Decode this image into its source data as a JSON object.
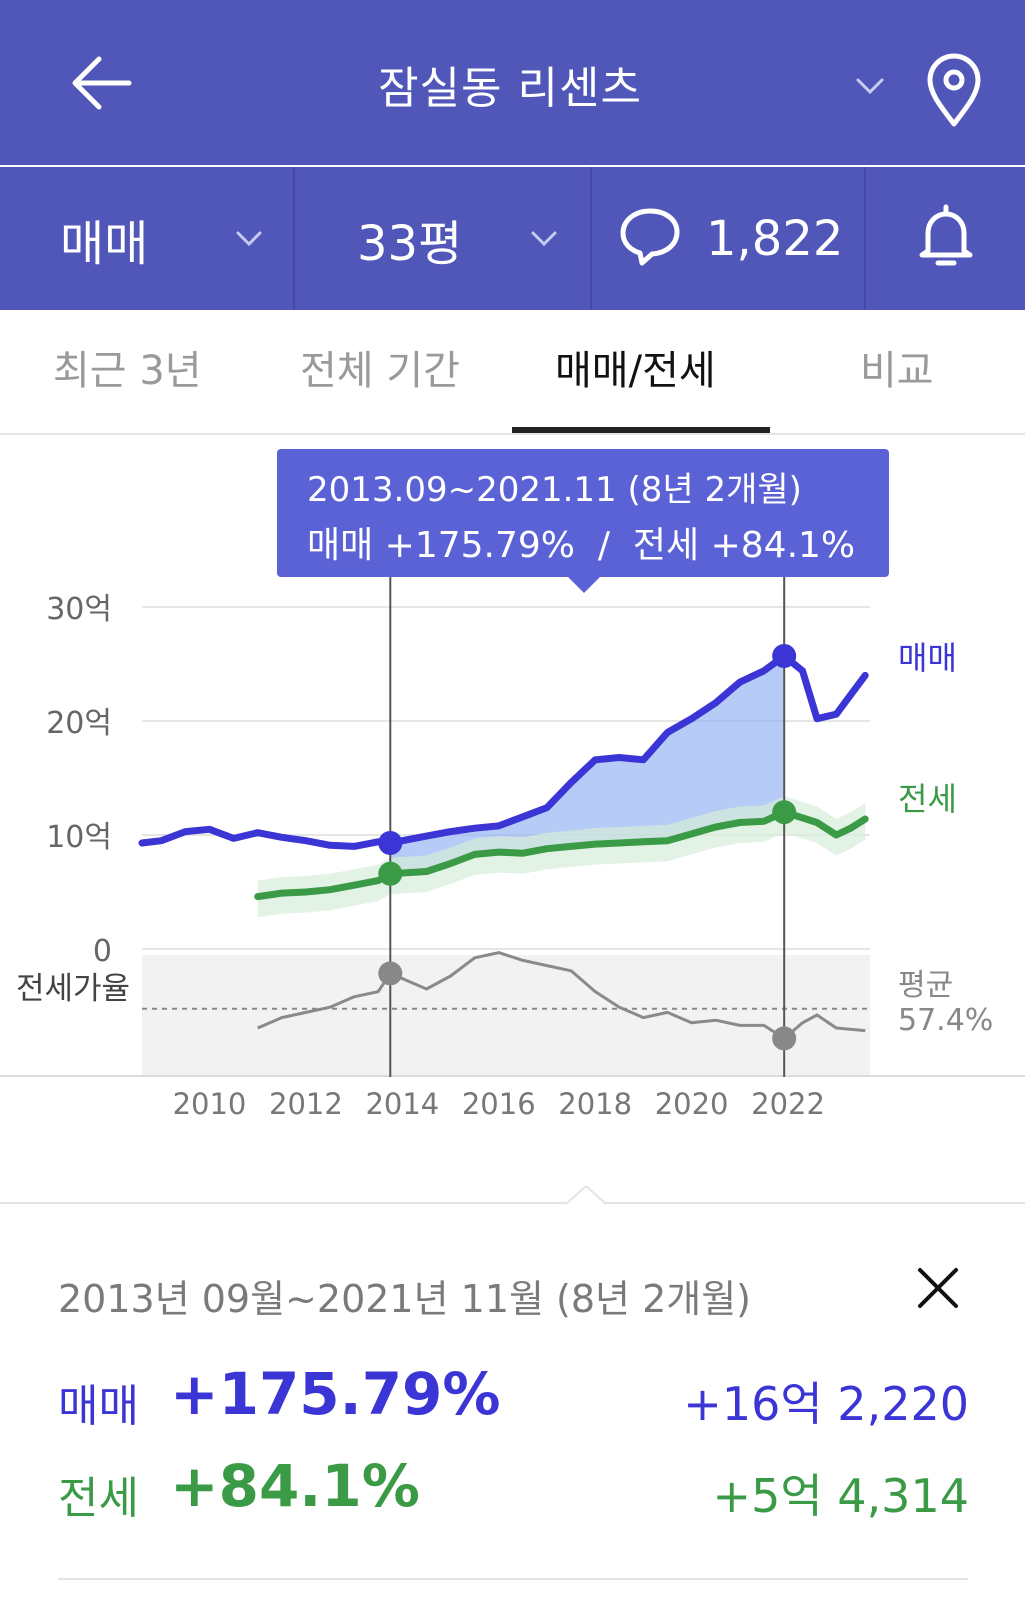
{
  "header": {
    "title": "잠실동 리센츠"
  },
  "subbar": {
    "trade_type": "매매",
    "area": "33평",
    "comment_count": "1,822"
  },
  "tabs": [
    "최근 3년",
    "전체 기간",
    "매매/전세",
    "비교"
  ],
  "active_tab": "매매/전세",
  "tooltip": {
    "period": "2013.09~2021.11 (8년 2개월)",
    "summary": "매매 +175.79%  /  전세 +84.1%"
  },
  "chart_data": {
    "type": "line",
    "x_ticks": [
      "2010",
      "2012",
      "2014",
      "2016",
      "2018",
      "2020",
      "2022"
    ],
    "y_ticks": [
      "30억",
      "20억",
      "10억",
      "0"
    ],
    "ylim": [
      0,
      30
    ],
    "y_unit": "억",
    "series": [
      {
        "name": "매매",
        "color": "#3b35d6",
        "x": [
          2008.6,
          2009.0,
          2009.5,
          2010.0,
          2010.5,
          2011.0,
          2011.5,
          2012.0,
          2012.5,
          2013.0,
          2013.5,
          2013.75,
          2014.5,
          2015.0,
          2015.5,
          2016.0,
          2016.5,
          2017.0,
          2017.5,
          2018.0,
          2018.5,
          2019.0,
          2019.5,
          2020.0,
          2020.5,
          2021.0,
          2021.5,
          2021.92,
          2022.3,
          2022.6,
          2023.0,
          2023.3,
          2023.6
        ],
        "y": [
          9.3,
          9.5,
          10.3,
          10.5,
          9.7,
          10.2,
          9.8,
          9.5,
          9.1,
          9.0,
          9.4,
          9.3,
          9.9,
          10.3,
          10.6,
          10.8,
          11.6,
          12.4,
          14.6,
          16.6,
          16.8,
          16.6,
          19.0,
          20.2,
          21.6,
          23.4,
          24.4,
          25.7,
          24.4,
          20.2,
          20.6,
          22.3,
          24.0
        ]
      },
      {
        "name": "전세",
        "color": "#3a9a45",
        "x": [
          2011.0,
          2011.5,
          2012.0,
          2012.5,
          2013.0,
          2013.5,
          2013.75,
          2014.5,
          2015.0,
          2015.5,
          2016.0,
          2016.5,
          2017.0,
          2017.5,
          2018.0,
          2018.5,
          2019.0,
          2019.5,
          2020.0,
          2020.5,
          2021.0,
          2021.5,
          2021.92,
          2022.3,
          2022.6,
          2023.0,
          2023.3,
          2023.6
        ],
        "y": [
          4.6,
          4.9,
          5.0,
          5.2,
          5.6,
          6.0,
          6.6,
          6.8,
          7.5,
          8.3,
          8.5,
          8.4,
          8.8,
          9.0,
          9.2,
          9.3,
          9.4,
          9.5,
          10.1,
          10.7,
          11.1,
          11.2,
          12.0,
          11.5,
          11.1,
          10.0,
          10.6,
          11.4
        ]
      }
    ],
    "ratio": {
      "label": "전세가율",
      "avg_label": "평균",
      "avg_value": "57.4%",
      "x": [
        2011.0,
        2011.5,
        2012.0,
        2012.5,
        2013.0,
        2013.5,
        2013.75,
        2014.5,
        2015.0,
        2015.5,
        2016.0,
        2016.5,
        2017.0,
        2017.5,
        2018.0,
        2018.5,
        2019.0,
        2019.5,
        2020.0,
        2020.5,
        2021.0,
        2021.5,
        2021.92,
        2022.3,
        2022.6,
        2023.0,
        2023.6
      ],
      "y": [
        50,
        54,
        56,
        58,
        62,
        64,
        71,
        65,
        70,
        77,
        79,
        76,
        74,
        72,
        64,
        58,
        54,
        56,
        52,
        53,
        51,
        51,
        46,
        52,
        55,
        50,
        49
      ]
    },
    "selection": {
      "start": 2013.75,
      "end": 2021.92
    }
  },
  "detail": {
    "period": "2013년 09월~2021년 11월 (8년 2개월)",
    "sale_label": "매매",
    "sale_pct": "+175.79%",
    "sale_amount": "+16억 2,220",
    "jeonse_label": "전세",
    "jeonse_pct": "+84.1%",
    "jeonse_amount": "+5억 4,314"
  },
  "colors": {
    "header_bg": "#5057b8",
    "sale": "#3b35d6",
    "jeonse": "#3a9a45",
    "tooltip_bg": "#5b62d6"
  }
}
